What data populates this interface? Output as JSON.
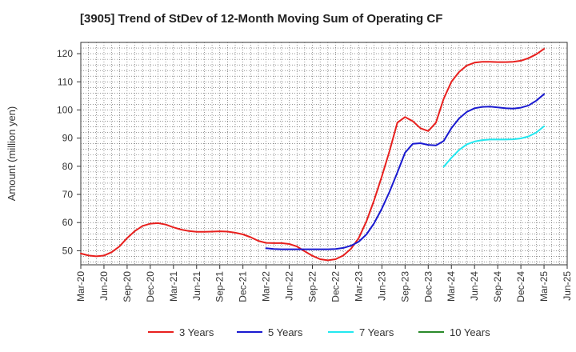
{
  "chart_data": {
    "type": "line",
    "title": "[3905]  Trend of StDev of 12-Month Moving Sum of Operating CF",
    "xlabel": "",
    "ylabel": "Amount (million yen)",
    "ylim": [
      45,
      124
    ],
    "yticks": [
      50,
      60,
      70,
      80,
      90,
      100,
      110,
      120
    ],
    "xticks": [
      "Mar-20",
      "Jun-20",
      "Sep-20",
      "Dec-20",
      "Mar-21",
      "Jun-21",
      "Sep-21",
      "Dec-21",
      "Mar-22",
      "Jun-22",
      "Sep-22",
      "Dec-22",
      "Mar-23",
      "Jun-23",
      "Sep-23",
      "Dec-23",
      "Mar-24",
      "Jun-24",
      "Sep-24",
      "Dec-24",
      "Mar-25",
      "Jun-25"
    ],
    "grid": true,
    "legend_position": "bottom",
    "colors": {
      "3 Years": "#e8201e",
      "5 Years": "#1a1ad0",
      "7 Years": "#22e8f0",
      "10 Years": "#2a8a2a"
    },
    "series": [
      {
        "name": "3 Years",
        "x": [
          "Mar-20",
          "Apr-20",
          "May-20",
          "Jun-20",
          "Jul-20",
          "Aug-20",
          "Sep-20",
          "Oct-20",
          "Nov-20",
          "Dec-20",
          "Jan-21",
          "Feb-21",
          "Mar-21",
          "Apr-21",
          "May-21",
          "Jun-21",
          "Jul-21",
          "Aug-21",
          "Sep-21",
          "Oct-21",
          "Nov-21",
          "Dec-21",
          "Jan-22",
          "Feb-22",
          "Mar-22",
          "Apr-22",
          "May-22",
          "Jun-22",
          "Jul-22",
          "Aug-22",
          "Sep-22",
          "Oct-22",
          "Nov-22",
          "Dec-22",
          "Jan-23",
          "Feb-23",
          "Mar-23",
          "Apr-23",
          "May-23",
          "Jun-23",
          "Jul-23",
          "Aug-23",
          "Sep-23",
          "Oct-23",
          "Nov-23",
          "Dec-23",
          "Jan-24",
          "Feb-24",
          "Mar-24",
          "Apr-24",
          "May-24",
          "Jun-24",
          "Jul-24",
          "Aug-24",
          "Sep-24",
          "Oct-24",
          "Nov-24",
          "Dec-24",
          "Jan-25",
          "Feb-25",
          "Mar-25"
        ],
        "values": [
          49.0,
          48.3,
          48.0,
          48.3,
          49.5,
          51.5,
          54.5,
          57.0,
          58.8,
          59.6,
          59.8,
          59.3,
          58.3,
          57.5,
          57.0,
          56.7,
          56.7,
          56.8,
          56.9,
          56.8,
          56.4,
          55.8,
          54.8,
          53.5,
          52.8,
          52.7,
          52.7,
          52.4,
          51.5,
          49.8,
          48.2,
          47.0,
          46.6,
          47.0,
          48.3,
          50.7,
          54.5,
          60.5,
          68.0,
          76.5,
          85.5,
          95.5,
          97.5,
          96.0,
          93.5,
          92.5,
          95.5,
          104.0,
          110.0,
          113.5,
          115.8,
          116.8,
          117.1,
          117.1,
          117.0,
          117.0,
          117.1,
          117.5,
          118.4,
          119.8,
          121.7
        ]
      },
      {
        "name": "5 Years",
        "x": [
          "Mar-22",
          "Apr-22",
          "May-22",
          "Jun-22",
          "Jul-22",
          "Aug-22",
          "Sep-22",
          "Oct-22",
          "Nov-22",
          "Dec-22",
          "Jan-23",
          "Feb-23",
          "Mar-23",
          "Apr-23",
          "May-23",
          "Jun-23",
          "Jul-23",
          "Aug-23",
          "Sep-23",
          "Oct-23",
          "Nov-23",
          "Dec-23",
          "Jan-24",
          "Feb-24",
          "Mar-24",
          "Apr-24",
          "May-24",
          "Jun-24",
          "Jul-24",
          "Aug-24",
          "Sep-24",
          "Oct-24",
          "Nov-24",
          "Dec-24",
          "Jan-25",
          "Feb-25",
          "Mar-25"
        ],
        "values": [
          50.9,
          50.6,
          50.5,
          50.5,
          50.5,
          50.5,
          50.5,
          50.5,
          50.5,
          50.6,
          51.0,
          51.8,
          53.2,
          55.8,
          59.8,
          65.0,
          71.0,
          77.8,
          84.8,
          88.0,
          88.2,
          87.6,
          87.4,
          89.0,
          93.5,
          97.0,
          99.3,
          100.6,
          101.1,
          101.2,
          100.9,
          100.6,
          100.5,
          100.8,
          101.6,
          103.3,
          105.6
        ]
      },
      {
        "name": "7 Years",
        "x": [
          "Feb-24",
          "Mar-24",
          "Apr-24",
          "May-24",
          "Jun-24",
          "Jul-24",
          "Aug-24",
          "Sep-24",
          "Oct-24",
          "Nov-24",
          "Dec-24",
          "Jan-25",
          "Feb-25",
          "Mar-25"
        ],
        "values": [
          79.8,
          83.0,
          85.8,
          87.8,
          88.8,
          89.3,
          89.5,
          89.5,
          89.5,
          89.6,
          89.9,
          90.6,
          92.0,
          94.2
        ]
      },
      {
        "name": "10 Years",
        "x": [],
        "values": []
      }
    ]
  }
}
